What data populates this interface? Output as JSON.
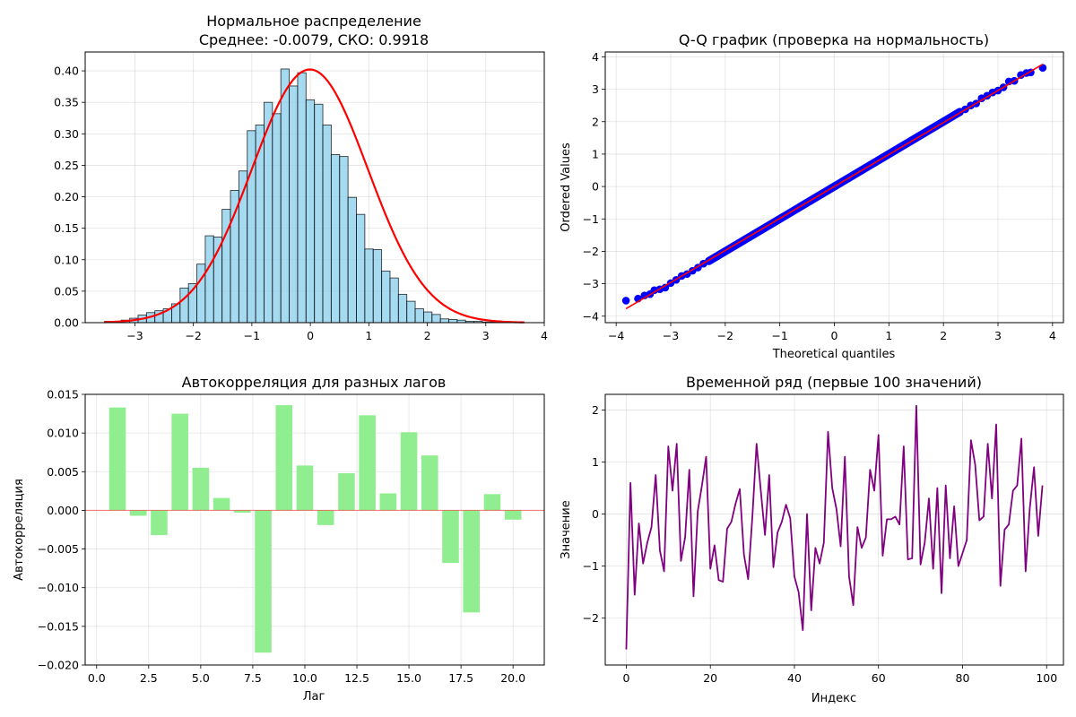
{
  "chart_data": [
    {
      "type": "histogram",
      "title_line1": "Нормальное распределение",
      "title_line2": "Среднее: -0.0079, СКО: 0.9918",
      "xlim": [
        -3.85,
        4.0
      ],
      "ylim": [
        0,
        0.43
      ],
      "xticks": [
        -3,
        -2,
        -1,
        0,
        1,
        2,
        3,
        4
      ],
      "xtick_labels": [
        "−3",
        "−2",
        "−1",
        "0",
        "1",
        "2",
        "3",
        "4"
      ],
      "yticks": [
        0.0,
        0.05,
        0.1,
        0.15,
        0.2,
        0.25,
        0.3,
        0.35,
        0.4
      ],
      "ytick_labels": [
        "0.00",
        "0.05",
        "0.10",
        "0.15",
        "0.20",
        "0.25",
        "0.30",
        "0.35",
        "0.40"
      ],
      "bin_start": -3.52,
      "bin_width": 0.1436,
      "bin_heights": [
        0.002,
        0.002,
        0.004,
        0.007,
        0.012,
        0.016,
        0.019,
        0.022,
        0.03,
        0.055,
        0.062,
        0.093,
        0.138,
        0.136,
        0.18,
        0.21,
        0.241,
        0.305,
        0.314,
        0.35,
        0.332,
        0.403,
        0.376,
        0.397,
        0.354,
        0.347,
        0.314,
        0.267,
        0.264,
        0.199,
        0.172,
        0.117,
        0.116,
        0.082,
        0.071,
        0.045,
        0.034,
        0.022,
        0.017,
        0.013,
        0.006,
        0.005,
        0.004,
        0.002,
        0.002,
        0.001,
        0.001,
        0.001,
        0.0,
        0.0
      ],
      "pdf_mean": -0.0079,
      "pdf_std": 0.9918,
      "pdf_range": [
        -3.52,
        3.66
      ],
      "bar_color": "#87ceeb",
      "line_color": "#ff0000"
    },
    {
      "type": "scatter",
      "title": "Q-Q график (проверка на нормальность)",
      "xlabel": "Theoretical quantiles",
      "ylabel": "Ordered Values",
      "xlim": [
        -4.2,
        4.2
      ],
      "ylim": [
        -4.2,
        4.15
      ],
      "xticks": [
        -4,
        -3,
        -2,
        -1,
        0,
        1,
        2,
        3,
        4
      ],
      "xtick_labels": [
        "−4",
        "−3",
        "−2",
        "−1",
        "0",
        "1",
        "2",
        "3",
        "4"
      ],
      "yticks": [
        -4,
        -3,
        -2,
        -1,
        0,
        1,
        2,
        3,
        4
      ],
      "ytick_labels": [
        "−4",
        "−3",
        "−2",
        "−1",
        "0",
        "1",
        "2",
        "3",
        "4"
      ],
      "points": [
        [
          -3.82,
          -3.52
        ],
        [
          -3.6,
          -3.46
        ],
        [
          -3.48,
          -3.36
        ],
        [
          -3.38,
          -3.32
        ],
        [
          -3.3,
          -3.2
        ],
        [
          -3.2,
          -3.17
        ],
        [
          -3.1,
          -3.12
        ],
        [
          -3.0,
          -2.98
        ],
        [
          -2.9,
          -2.88
        ],
        [
          -2.8,
          -2.76
        ],
        [
          -2.7,
          -2.7
        ],
        [
          -2.6,
          -2.6
        ],
        [
          -2.5,
          -2.5
        ],
        [
          -2.4,
          -2.38
        ],
        [
          -2.3,
          -2.3
        ],
        [
          2.3,
          2.3
        ],
        [
          2.4,
          2.38
        ],
        [
          2.5,
          2.5
        ],
        [
          2.6,
          2.56
        ],
        [
          2.7,
          2.72
        ],
        [
          2.8,
          2.8
        ],
        [
          2.9,
          2.9
        ],
        [
          3.0,
          2.96
        ],
        [
          3.1,
          3.06
        ],
        [
          3.2,
          3.24
        ],
        [
          3.3,
          3.26
        ],
        [
          3.42,
          3.44
        ],
        [
          3.52,
          3.5
        ],
        [
          3.6,
          3.52
        ],
        [
          3.82,
          3.66
        ]
      ],
      "dense_range": [
        -2.3,
        2.3
      ],
      "fit_line": [
        [
          -3.82,
          -3.77
        ],
        [
          3.82,
          3.77
        ]
      ],
      "point_color": "#0000ff",
      "line_color": "#ff0000"
    },
    {
      "type": "bar",
      "title": "Автокорреляция для разных лагов",
      "xlabel": "Лаг",
      "ylabel": "Автокорреляция",
      "xlim": [
        -0.55,
        21.5
      ],
      "ylim": [
        -0.02,
        0.015
      ],
      "xticks": [
        0,
        2.5,
        5,
        7.5,
        10,
        12.5,
        15,
        17.5,
        20
      ],
      "xtick_labels": [
        "0.0",
        "2.5",
        "5.0",
        "7.5",
        "10.0",
        "12.5",
        "15.0",
        "17.5",
        "20.0"
      ],
      "yticks": [
        -0.02,
        -0.015,
        -0.01,
        -0.005,
        0.0,
        0.005,
        0.01,
        0.015
      ],
      "ytick_labels": [
        "−0.020",
        "−0.015",
        "−0.010",
        "−0.005",
        "0.000",
        "0.005",
        "0.010",
        "0.015"
      ],
      "lags": [
        1,
        2,
        3,
        4,
        5,
        6,
        7,
        8,
        9,
        10,
        11,
        12,
        13,
        14,
        15,
        16,
        17,
        18,
        19,
        20
      ],
      "values": [
        0.0133,
        -0.0007,
        -0.0032,
        0.0125,
        0.0055,
        0.0016,
        -0.0003,
        -0.0184,
        0.0136,
        0.0058,
        -0.0019,
        0.0048,
        0.0123,
        0.0022,
        0.0101,
        0.0071,
        -0.0068,
        -0.0132,
        0.0021,
        -0.0012
      ],
      "bar_color": "#90ee90",
      "zero_line_color": "#ff0000"
    },
    {
      "type": "line",
      "title": "Временной ряд (первые 100 значений)",
      "xlabel": "Индекс",
      "ylabel": "Значение",
      "xlim": [
        -5,
        104
      ],
      "ylim": [
        -2.9,
        2.3
      ],
      "xticks": [
        0,
        20,
        40,
        60,
        80,
        100
      ],
      "xtick_labels": [
        "0",
        "20",
        "40",
        "60",
        "80",
        "100"
      ],
      "yticks": [
        -2,
        -1,
        0,
        1,
        2
      ],
      "ytick_labels": [
        "−2",
        "−1",
        "0",
        "1",
        "2"
      ],
      "values": [
        -2.6,
        0.6,
        -1.55,
        -0.18,
        -0.95,
        -0.55,
        -0.25,
        0.75,
        -0.7,
        -1.1,
        1.3,
        0.45,
        1.35,
        -0.9,
        -0.45,
        0.85,
        -1.58,
        0.05,
        0.55,
        1.1,
        -1.05,
        -0.6,
        -1.27,
        -1.3,
        -0.28,
        -0.15,
        0.2,
        0.48,
        -0.78,
        -1.25,
        -0.05,
        1.35,
        0.45,
        -0.4,
        0.75,
        -1.02,
        -0.35,
        -0.15,
        0.18,
        -0.08,
        -1.2,
        -1.5,
        -2.23,
        0.0,
        -1.85,
        -0.65,
        -0.95,
        -0.55,
        1.58,
        0.5,
        0.1,
        -0.62,
        1.1,
        -1.2,
        -1.75,
        -0.25,
        -0.65,
        -0.45,
        0.85,
        0.45,
        1.52,
        -0.8,
        -0.1,
        -0.1,
        -0.05,
        -0.2,
        1.3,
        -0.87,
        -0.85,
        2.08,
        -0.97,
        -0.55,
        0.3,
        -1.05,
        0.5,
        -1.52,
        0.55,
        -0.85,
        0.15,
        -1.0,
        -0.75,
        -0.5,
        1.42,
        0.95,
        -0.12,
        -0.05,
        1.35,
        0.3,
        1.72,
        -1.38,
        -0.3,
        -0.2,
        0.45,
        0.55,
        1.45,
        -1.1,
        0.12,
        0.9,
        -0.42,
        0.55
      ],
      "line_color": "#800080"
    }
  ]
}
